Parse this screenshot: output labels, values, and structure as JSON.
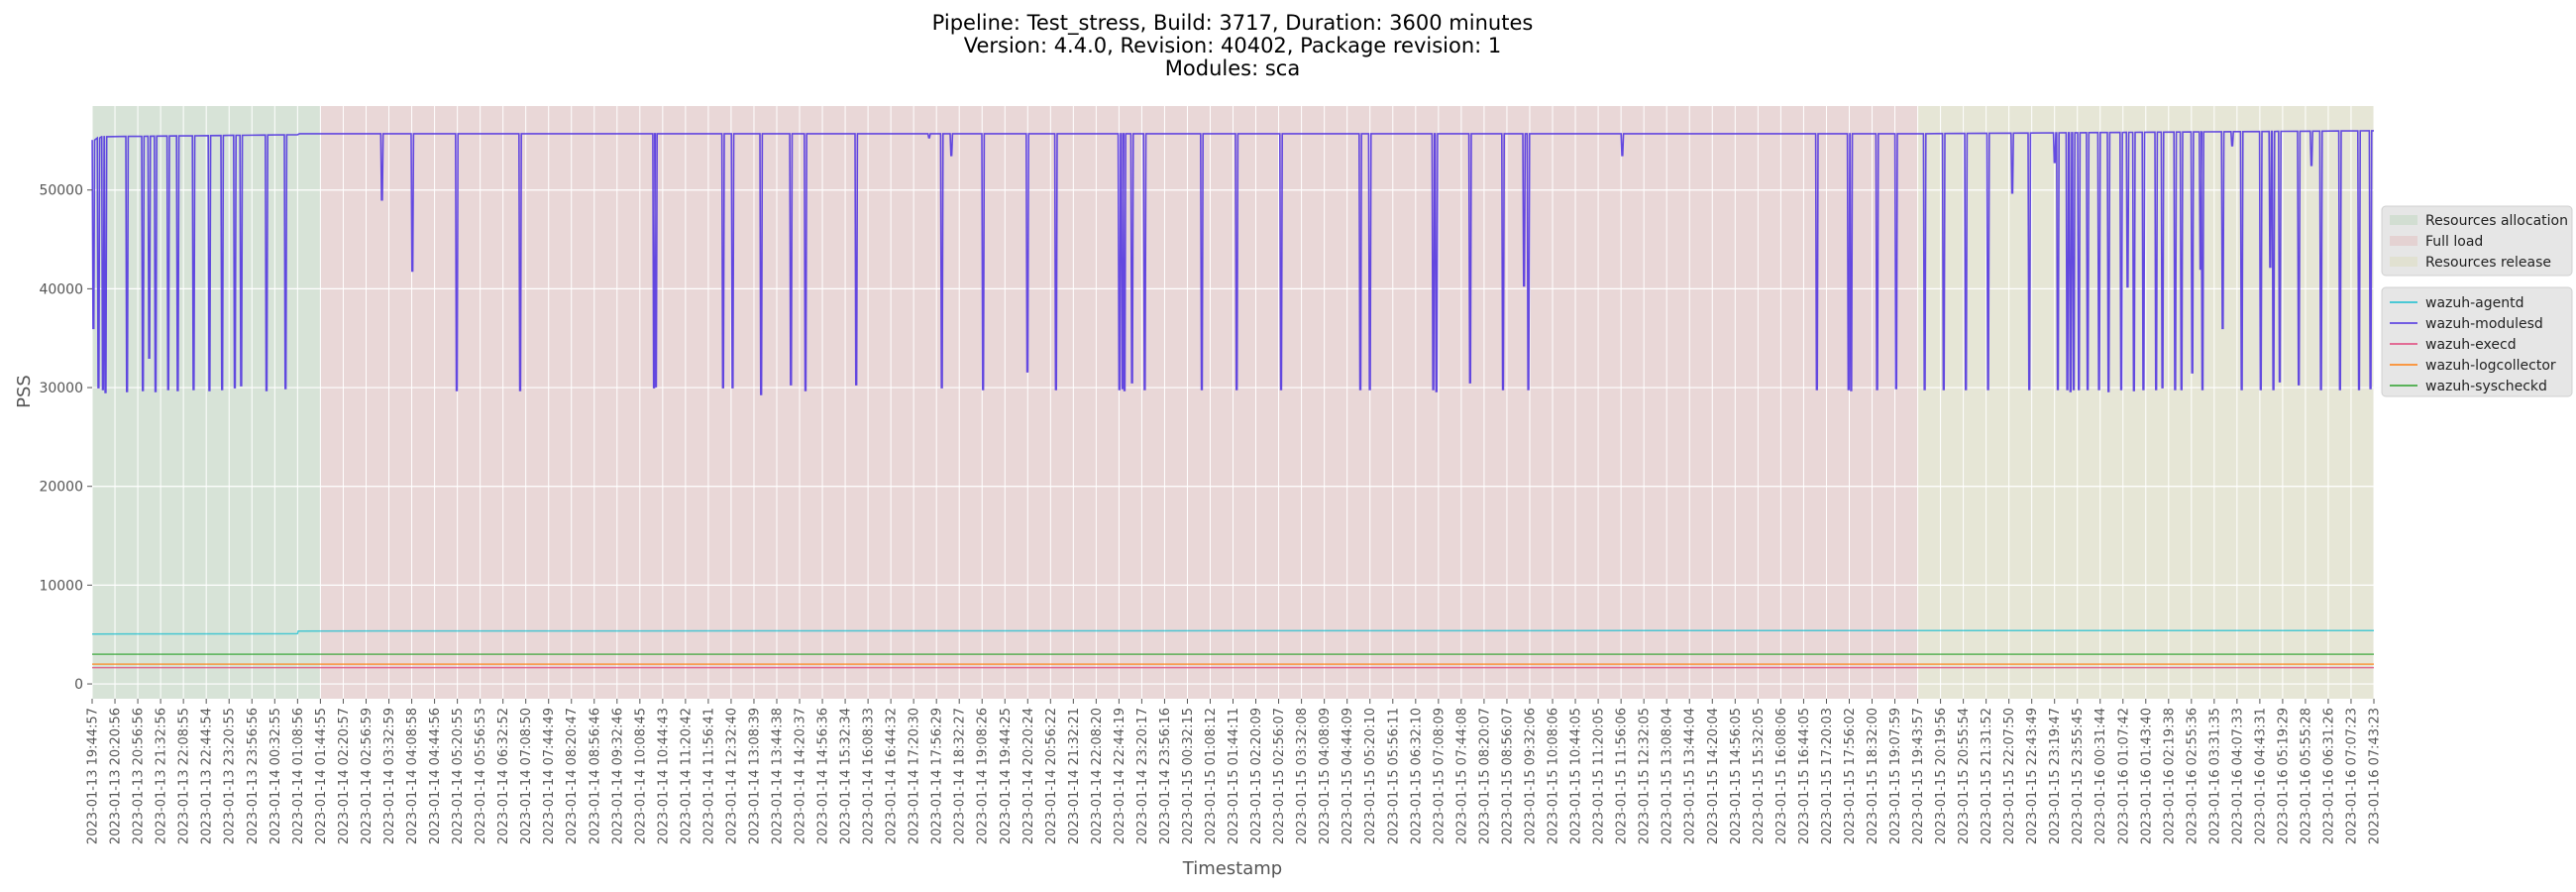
{
  "chart_data": {
    "type": "line",
    "title_lines": [
      "Pipeline: Test_stress, Build: 3717, Duration: 3600 minutes",
      "Version: 4.4.0, Revision: 40402, Package revision: 1",
      "Modules: sca"
    ],
    "xlabel": "Timestamp",
    "ylabel": "PSS",
    "ylim": [
      -1500,
      58500
    ],
    "yticks": [
      0,
      10000,
      20000,
      30000,
      40000,
      50000
    ],
    "grid": true,
    "legend_placement": "right",
    "x_start": "2023-01-13 19:44:57",
    "x_end": "2023-01-16 07:43:23",
    "x_tick_labels": [
      "2023-01-13 19:44:57",
      "2023-01-13 20:20:56",
      "2023-01-13 20:56:56",
      "2023-01-13 21:32:56",
      "2023-01-13 22:08:55",
      "2023-01-13 22:44:54",
      "2023-01-13 23:20:55",
      "2023-01-13 23:56:56",
      "2023-01-14 00:32:55",
      "2023-01-14 01:08:56",
      "2023-01-14 01:44:55",
      "2023-01-14 02:20:57",
      "2023-01-14 02:56:59",
      "2023-01-14 03:32:59",
      "2023-01-14 04:08:58",
      "2023-01-14 04:44:56",
      "2023-01-14 05:20:55",
      "2023-01-14 05:56:53",
      "2023-01-14 06:32:52",
      "2023-01-14 07:08:50",
      "2023-01-14 07:44:49",
      "2023-01-14 08:20:47",
      "2023-01-14 08:56:46",
      "2023-01-14 09:32:46",
      "2023-01-14 10:08:45",
      "2023-01-14 10:44:43",
      "2023-01-14 11:20:42",
      "2023-01-14 11:56:41",
      "2023-01-14 12:32:40",
      "2023-01-14 13:08:39",
      "2023-01-14 13:44:38",
      "2023-01-14 14:20:37",
      "2023-01-14 14:56:36",
      "2023-01-14 15:32:34",
      "2023-01-14 16:08:33",
      "2023-01-14 16:44:32",
      "2023-01-14 17:20:30",
      "2023-01-14 17:56:29",
      "2023-01-14 18:32:27",
      "2023-01-14 19:08:26",
      "2023-01-14 19:44:25",
      "2023-01-14 20:20:24",
      "2023-01-14 20:56:22",
      "2023-01-14 21:32:21",
      "2023-01-14 22:08:20",
      "2023-01-14 22:44:19",
      "2023-01-14 23:20:17",
      "2023-01-14 23:56:16",
      "2023-01-15 00:32:15",
      "2023-01-15 01:08:12",
      "2023-01-15 01:44:11",
      "2023-01-15 02:20:09",
      "2023-01-15 02:56:07",
      "2023-01-15 03:32:08",
      "2023-01-15 04:08:09",
      "2023-01-15 04:44:09",
      "2023-01-15 05:20:10",
      "2023-01-15 05:56:11",
      "2023-01-15 06:32:10",
      "2023-01-15 07:08:09",
      "2023-01-15 07:44:08",
      "2023-01-15 08:20:07",
      "2023-01-15 08:56:07",
      "2023-01-15 09:32:06",
      "2023-01-15 10:08:06",
      "2023-01-15 10:44:05",
      "2023-01-15 11:20:05",
      "2023-01-15 11:56:06",
      "2023-01-15 12:32:05",
      "2023-01-15 13:08:04",
      "2023-01-15 13:44:04",
      "2023-01-15 14:20:04",
      "2023-01-15 14:56:05",
      "2023-01-15 15:32:05",
      "2023-01-15 16:08:06",
      "2023-01-15 16:44:05",
      "2023-01-15 17:20:03",
      "2023-01-15 17:56:02",
      "2023-01-15 18:32:00",
      "2023-01-15 19:07:59",
      "2023-01-15 19:43:57",
      "2023-01-15 20:19:56",
      "2023-01-15 20:55:54",
      "2023-01-15 21:31:52",
      "2023-01-15 22:07:50",
      "2023-01-15 22:43:49",
      "2023-01-15 23:19:47",
      "2023-01-15 23:55:45",
      "2023-01-16 00:31:44",
      "2023-01-16 01:07:42",
      "2023-01-16 01:43:40",
      "2023-01-16 02:19:38",
      "2023-01-16 02:55:36",
      "2023-01-16 03:31:35",
      "2023-01-16 04:07:33",
      "2023-01-16 04:43:31",
      "2023-01-16 05:19:29",
      "2023-01-16 05:55:28",
      "2023-01-16 06:31:26",
      "2023-01-16 07:07:23",
      "2023-01-16 07:43:23"
    ],
    "phases": [
      {
        "name": "Resources allocation",
        "start": "2023-01-13 19:44:57",
        "end": "2023-01-14 01:44:55",
        "color": "#2ca02c"
      },
      {
        "name": "Full load",
        "start": "2023-01-14 01:44:55",
        "end": "2023-01-15 19:43:57",
        "color": "#d62728"
      },
      {
        "name": "Resources release",
        "start": "2023-01-15 19:43:57",
        "end": "2023-01-16 07:43:23",
        "color": "#bcbd22"
      }
    ],
    "series": [
      {
        "name": "wazuh-agentd",
        "color": "#17becf",
        "values": [
          {
            "x": "2023-01-13 19:44:57",
            "y": 5050
          },
          {
            "x": "2023-01-14 01:08:56",
            "y": 5080
          },
          {
            "x": "2023-01-14 01:10:00",
            "y": 5350
          },
          {
            "x": "2023-01-15 19:43:57",
            "y": 5400
          },
          {
            "x": "2023-01-16 07:43:23",
            "y": 5400
          }
        ]
      },
      {
        "name": "wazuh-modulesd",
        "color": "#4b2ee0",
        "baseline": [
          {
            "x": "2023-01-13 19:44:57",
            "y": 55000
          },
          {
            "x": "2023-01-13 20:00:00",
            "y": 55400
          },
          {
            "x": "2023-01-14 01:08:56",
            "y": 55600
          },
          {
            "x": "2023-01-14 01:12:00",
            "y": 55700
          },
          {
            "x": "2023-01-15 19:43:57",
            "y": 55700
          },
          {
            "x": "2023-01-16 07:43:23",
            "y": 56000
          }
        ],
        "dips": [
          {
            "x": "2023-01-13 19:47:00",
            "y": 36000
          },
          {
            "x": "2023-01-13 19:55:00",
            "y": 30000
          },
          {
            "x": "2023-01-13 20:02:00",
            "y": 29800
          },
          {
            "x": "2023-01-13 20:06:00",
            "y": 29500
          },
          {
            "x": "2023-01-13 20:40:00",
            "y": 29600
          },
          {
            "x": "2023-01-13 21:05:00",
            "y": 29700
          },
          {
            "x": "2023-01-13 21:15:00",
            "y": 33000
          },
          {
            "x": "2023-01-13 21:25:00",
            "y": 29600
          },
          {
            "x": "2023-01-13 21:45:00",
            "y": 29800
          },
          {
            "x": "2023-01-13 22:00:00",
            "y": 29700
          },
          {
            "x": "2023-01-13 22:25:00",
            "y": 29800
          },
          {
            "x": "2023-01-13 22:50:00",
            "y": 29700
          },
          {
            "x": "2023-01-13 23:10:00",
            "y": 29800
          },
          {
            "x": "2023-01-13 23:30:00",
            "y": 30000
          },
          {
            "x": "2023-01-13 23:40:00",
            "y": 30200
          },
          {
            "x": "2023-01-14 00:20:00",
            "y": 29700
          },
          {
            "x": "2023-01-14 00:50:00",
            "y": 29900
          },
          {
            "x": "2023-01-14 03:22:00",
            "y": 49000
          },
          {
            "x": "2023-01-14 04:10:00",
            "y": 41800
          },
          {
            "x": "2023-01-14 05:20:00",
            "y": 29700
          },
          {
            "x": "2023-01-14 07:00:00",
            "y": 29700
          },
          {
            "x": "2023-01-14 10:31:00",
            "y": 30000
          },
          {
            "x": "2023-01-14 10:34:00",
            "y": 30100
          },
          {
            "x": "2023-01-14 12:20:00",
            "y": 30000
          },
          {
            "x": "2023-01-14 12:35:00",
            "y": 30000
          },
          {
            "x": "2023-01-14 13:20:00",
            "y": 29300
          },
          {
            "x": "2023-01-14 14:07:00",
            "y": 30300
          },
          {
            "x": "2023-01-14 14:30:00",
            "y": 29700
          },
          {
            "x": "2023-01-14 15:50:00",
            "y": 30300
          },
          {
            "x": "2023-01-14 17:45:00",
            "y": 55300
          },
          {
            "x": "2023-01-14 18:05:00",
            "y": 30000
          },
          {
            "x": "2023-01-14 18:20:00",
            "y": 53500
          },
          {
            "x": "2023-01-14 19:10:00",
            "y": 29800
          },
          {
            "x": "2023-01-14 20:20:00",
            "y": 31600
          },
          {
            "x": "2023-01-14 21:05:00",
            "y": 29800
          },
          {
            "x": "2023-01-14 22:45:00",
            "y": 29800
          },
          {
            "x": "2023-01-14 22:50:00",
            "y": 29900
          },
          {
            "x": "2023-01-14 22:53:00",
            "y": 29700
          },
          {
            "x": "2023-01-14 23:05:00",
            "y": 30500
          },
          {
            "x": "2023-01-14 23:25:00",
            "y": 29800
          },
          {
            "x": "2023-01-15 00:55:00",
            "y": 29800
          },
          {
            "x": "2023-01-15 01:50:00",
            "y": 29800
          },
          {
            "x": "2023-01-15 03:00:00",
            "y": 29800
          },
          {
            "x": "2023-01-15 05:05:00",
            "y": 29800
          },
          {
            "x": "2023-01-15 05:20:00",
            "y": 29800
          },
          {
            "x": "2023-01-15 07:00:00",
            "y": 29800
          },
          {
            "x": "2023-01-15 07:05:00",
            "y": 29600
          },
          {
            "x": "2023-01-15 07:58:00",
            "y": 30500
          },
          {
            "x": "2023-01-15 08:50:00",
            "y": 29800
          },
          {
            "x": "2023-01-15 09:23:00",
            "y": 40300
          },
          {
            "x": "2023-01-15 09:30:00",
            "y": 29800
          },
          {
            "x": "2023-01-15 11:58:00",
            "y": 53500
          },
          {
            "x": "2023-01-15 17:05:00",
            "y": 29800
          },
          {
            "x": "2023-01-15 17:55:00",
            "y": 29800
          },
          {
            "x": "2023-01-15 17:59:00",
            "y": 29700
          },
          {
            "x": "2023-01-15 18:40:00",
            "y": 29800
          },
          {
            "x": "2023-01-15 19:10:00",
            "y": 29900
          },
          {
            "x": "2023-01-15 19:55:00",
            "y": 29800
          },
          {
            "x": "2023-01-15 20:25:00",
            "y": 29800
          },
          {
            "x": "2023-01-15 21:00:00",
            "y": 29800
          },
          {
            "x": "2023-01-15 21:35:00",
            "y": 29800
          },
          {
            "x": "2023-01-15 22:13:00",
            "y": 49700
          },
          {
            "x": "2023-01-15 22:40:00",
            "y": 29800
          },
          {
            "x": "2023-01-15 23:20:00",
            "y": 52800
          },
          {
            "x": "2023-01-15 23:25:00",
            "y": 29800
          },
          {
            "x": "2023-01-15 23:40:00",
            "y": 29800
          },
          {
            "x": "2023-01-15 23:45:00",
            "y": 29600
          },
          {
            "x": "2023-01-15 23:50:00",
            "y": 29800
          },
          {
            "x": "2023-01-15 23:58:00",
            "y": 29800
          },
          {
            "x": "2023-01-16 00:12:00",
            "y": 29800
          },
          {
            "x": "2023-01-16 00:30:00",
            "y": 29800
          },
          {
            "x": "2023-01-16 00:45:00",
            "y": 29600
          },
          {
            "x": "2023-01-16 01:05:00",
            "y": 29800
          },
          {
            "x": "2023-01-16 01:15:00",
            "y": 40200
          },
          {
            "x": "2023-01-16 01:25:00",
            "y": 29700
          },
          {
            "x": "2023-01-16 01:40:00",
            "y": 29800
          },
          {
            "x": "2023-01-16 02:00:00",
            "y": 29800
          },
          {
            "x": "2023-01-16 02:10:00",
            "y": 30000
          },
          {
            "x": "2023-01-16 02:30:00",
            "y": 29800
          },
          {
            "x": "2023-01-16 02:40:00",
            "y": 29800
          },
          {
            "x": "2023-01-16 02:57:00",
            "y": 31500
          },
          {
            "x": "2023-01-16 03:10:00",
            "y": 42000
          },
          {
            "x": "2023-01-16 03:13:00",
            "y": 29800
          },
          {
            "x": "2023-01-16 03:45:00",
            "y": 36000
          },
          {
            "x": "2023-01-16 04:00:00",
            "y": 54500
          },
          {
            "x": "2023-01-16 04:15:00",
            "y": 29800
          },
          {
            "x": "2023-01-16 04:45:00",
            "y": 29800
          },
          {
            "x": "2023-01-16 05:00:00",
            "y": 42200
          },
          {
            "x": "2023-01-16 05:05:00",
            "y": 29800
          },
          {
            "x": "2023-01-16 05:15:00",
            "y": 30600
          },
          {
            "x": "2023-01-16 05:45:00",
            "y": 30300
          },
          {
            "x": "2023-01-16 06:05:00",
            "y": 52500
          },
          {
            "x": "2023-01-16 06:20:00",
            "y": 29800
          },
          {
            "x": "2023-01-16 06:50:00",
            "y": 29800
          },
          {
            "x": "2023-01-16 07:20:00",
            "y": 29800
          },
          {
            "x": "2023-01-16 07:38:00",
            "y": 29900
          }
        ]
      },
      {
        "name": "wazuh-execd",
        "color": "#e0457b",
        "values": [
          {
            "x": "2023-01-13 19:44:57",
            "y": 1650
          },
          {
            "x": "2023-01-16 07:43:23",
            "y": 1650
          }
        ]
      },
      {
        "name": "wazuh-logcollector",
        "color": "#ff7f0e",
        "values": [
          {
            "x": "2023-01-13 19:44:57",
            "y": 2000
          },
          {
            "x": "2023-01-16 07:43:23",
            "y": 2000
          }
        ]
      },
      {
        "name": "wazuh-syscheckd",
        "color": "#2ca02c",
        "values": [
          {
            "x": "2023-01-13 19:44:57",
            "y": 3000
          },
          {
            "x": "2023-01-16 07:43:23",
            "y": 3000
          }
        ]
      }
    ]
  }
}
